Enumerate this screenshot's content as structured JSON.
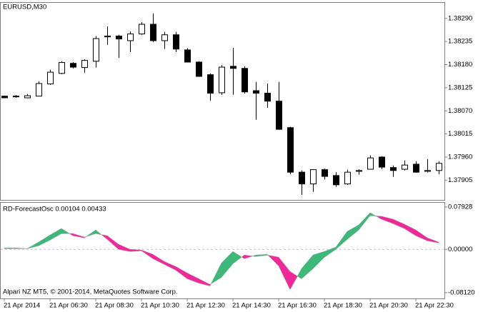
{
  "chart_data": [
    {
      "type": "candlestick",
      "title": "EURUSD,M30",
      "open": [
        1.38105,
        1.38105,
        1.38101,
        1.38105,
        1.38134,
        1.38159,
        1.38183,
        1.38173,
        1.38188,
        1.38246,
        1.38248,
        1.38237,
        1.38253,
        1.38276,
        1.38237,
        1.38251,
        1.38215,
        1.38186,
        1.38156,
        1.38113,
        1.38176,
        1.38171,
        1.38118,
        1.38112,
        1.38093,
        1.3803,
        1.37924,
        1.37896,
        1.3793,
        1.37916,
        1.37896,
        1.37926,
        1.37931,
        1.3796,
        1.37935,
        1.37931,
        1.37943,
        1.37926,
        1.37928
      ],
      "high": [
        1.38106,
        1.38108,
        1.3811,
        1.3814,
        1.38168,
        1.38188,
        1.38186,
        1.38193,
        1.38248,
        1.38271,
        1.38251,
        1.38259,
        1.38281,
        1.38302,
        1.38258,
        1.38258,
        1.38219,
        1.38188,
        1.38159,
        1.38179,
        1.3822,
        1.38176,
        1.38139,
        1.38135,
        1.38139,
        1.38032,
        1.37928,
        1.37931,
        1.37933,
        1.37924,
        1.3793,
        1.37931,
        1.37964,
        1.37962,
        1.3794,
        1.37952,
        1.3795,
        1.37955,
        1.3795
      ],
      "low": [
        1.38101,
        1.38101,
        1.381,
        1.38105,
        1.38132,
        1.38157,
        1.38171,
        1.38161,
        1.38173,
        1.38227,
        1.38196,
        1.3821,
        1.38251,
        1.38234,
        1.38217,
        1.3821,
        1.38186,
        1.38151,
        1.38094,
        1.38108,
        1.38108,
        1.38111,
        1.38049,
        1.38077,
        1.38025,
        1.37919,
        1.3787,
        1.37877,
        1.37907,
        1.37889,
        1.37894,
        1.37918,
        1.3793,
        1.37931,
        1.37913,
        1.37928,
        1.37923,
        1.37923,
        1.37919
      ],
      "close": [
        1.38101,
        1.38104,
        1.38106,
        1.38135,
        1.38162,
        1.38185,
        1.38174,
        1.3819,
        1.38242,
        1.38248,
        1.38241,
        1.38253,
        1.38276,
        1.38237,
        1.38251,
        1.38217,
        1.38186,
        1.38152,
        1.38112,
        1.38174,
        1.38171,
        1.38115,
        1.38112,
        1.38093,
        1.38026,
        1.37924,
        1.37896,
        1.3793,
        1.37914,
        1.37894,
        1.37924,
        1.37928,
        1.37958,
        1.37936,
        1.37928,
        1.37941,
        1.37924,
        1.37928,
        1.37945
      ],
      "up_color": "#ffffff",
      "down_color": "#000000",
      "outline_color": "#000000",
      "ylim": [
        1.37858,
        1.38327
      ],
      "yticks": [
        {
          "value": 1.3829,
          "label": "1.38290"
        },
        1.38235,
        {
          "value": 1.3818,
          "label": "1.38180"
        },
        1.38125,
        {
          "value": 1.3807,
          "label": "1.38070"
        },
        1.38015,
        {
          "value": 1.3796,
          "label": "1.37960"
        },
        1.37905
      ]
    },
    {
      "type": "oscillator",
      "title": "RD-ForecastOsc 0.00104 0.00433",
      "annotation": "Alpari NZ MT5, © 2001-2014, MetaQuotes Software Corp.",
      "categories": [
        "21 Apr 2014",
        null,
        null,
        null,
        "21 Apr 06:30",
        null,
        null,
        null,
        "21 Apr 08:30",
        null,
        null,
        null,
        "21 Apr 10:30",
        null,
        null,
        null,
        "21 Apr 12:30",
        null,
        null,
        null,
        "21 Apr 14:30",
        null,
        null,
        null,
        "21 Apr 16:30",
        null,
        null,
        null,
        "21 Apr 18:30",
        null,
        null,
        null,
        "21 Apr 20:30",
        null,
        null,
        null,
        "21 Apr 22:30",
        null,
        null
      ],
      "series": [
        {
          "values": [
            0.00269,
            0.00269,
            0.00134,
            0.01344,
            0.02688,
            0.03898,
            0.02554,
            0.02151,
            0.03629,
            0.01882,
            0,
            -0.00403,
            -0.00269,
            -0.01747,
            -0.02823,
            -0.03898,
            -0.05511,
            -0.06317,
            -0.06855,
            -0.02554,
            -0.00403,
            -0.01747,
            -0.01075,
            -0.00941,
            -0.03091,
            -0.07527,
            -0.03629,
            -0.01075,
            -0.00403,
            0.00403,
            0.0336,
            0.0457,
            0.06855,
            0.05645,
            0.04839,
            0.03898,
            0.02554,
            0.01613,
            0.0121
          ]
        },
        {
          "values": [
            0.00134,
            0.00134,
            0.00134,
            0.00672,
            0.01747,
            0.02957,
            0.02957,
            0.02285,
            0.02957,
            0.02554,
            0.00941,
            0,
            -0.00134,
            -0.00941,
            -0.02285,
            -0.03226,
            -0.04435,
            -0.05511,
            -0.06586,
            -0.05242,
            -0.02688,
            -0.01075,
            -0.01344,
            -0.01075,
            -0.01478,
            -0.04167,
            -0.05511,
            -0.03629,
            -0.01478,
            0,
            0.01882,
            0.03629,
            0.06317,
            0.06183,
            0.05645,
            0.04704,
            0.03629,
            0.02151,
            0.01344
          ]
        }
      ],
      "up_color": "#3cb878",
      "down_color": "#f0289a",
      "ylim": [
        -0.092,
        0.0873
      ],
      "yticks": [
        0.07928,
        {
          "value": 0,
          "label": "0.00000"
        },
        {
          "value": -0.0812,
          "label": "-0.08120"
        }
      ]
    }
  ]
}
